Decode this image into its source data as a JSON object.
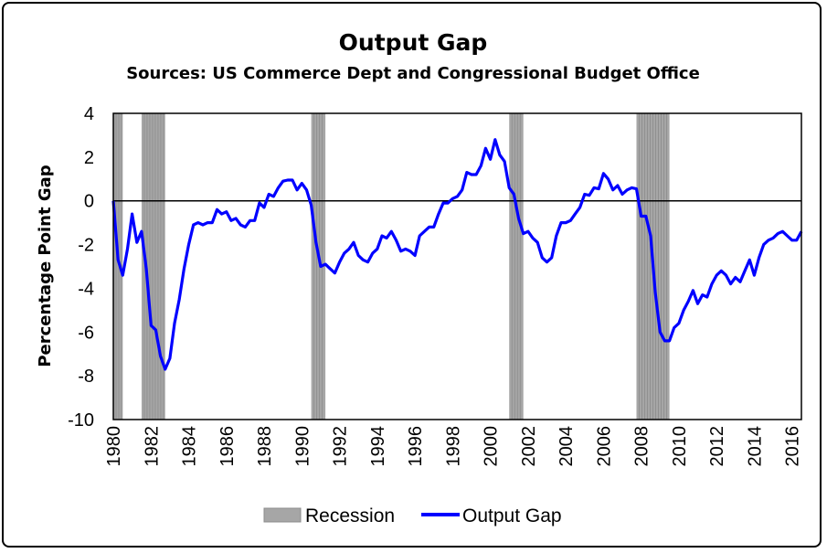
{
  "chart_data": {
    "type": "line",
    "title": "Output Gap",
    "subtitle": "Sources: US Commerce Dept and Congressional Budget Office",
    "xlabel": "",
    "ylabel": "Percentage Point Gap",
    "xlim": [
      1980,
      2016.5
    ],
    "ylim": [
      -10,
      4
    ],
    "yticks": [
      4,
      2,
      0,
      -2,
      -4,
      -6,
      -8,
      -10
    ],
    "yticklabels": [
      "4",
      "2",
      "0",
      "-2",
      "-4",
      "-6",
      "-8",
      "-10"
    ],
    "xticks": [
      1980,
      1982,
      1984,
      1986,
      1988,
      1990,
      1992,
      1994,
      1996,
      1998,
      2000,
      2002,
      2004,
      2006,
      2008,
      2010,
      2012,
      2014,
      2016
    ],
    "xticklabels": [
      "1980",
      "1982",
      "1984",
      "1986",
      "1988",
      "1990",
      "1992",
      "1994",
      "1996",
      "1998",
      "2000",
      "2002",
      "2004",
      "2006",
      "2008",
      "2010",
      "2012",
      "2014",
      "2016"
    ],
    "grid": false,
    "legend_position": "bottom",
    "legend": [
      "Recession",
      "Output Gap"
    ],
    "colors": {
      "line": "#0000ff",
      "recession": "#a6a6a6",
      "zero_line": "#000000"
    },
    "recessions": [
      {
        "start": 1980.0,
        "end": 1980.5
      },
      {
        "start": 1981.5,
        "end": 1982.75
      },
      {
        "start": 1990.5,
        "end": 1991.25
      },
      {
        "start": 2001.0,
        "end": 2001.75
      },
      {
        "start": 2007.75,
        "end": 2009.5
      }
    ],
    "series": [
      {
        "name": "Output Gap",
        "x": [
          1980.0,
          1980.25,
          1980.5,
          1980.75,
          1981.0,
          1981.25,
          1981.5,
          1981.75,
          1982.0,
          1982.25,
          1982.5,
          1982.75,
          1983.0,
          1983.25,
          1983.5,
          1983.75,
          1984.0,
          1984.25,
          1984.5,
          1984.75,
          1985.0,
          1985.25,
          1985.5,
          1985.75,
          1986.0,
          1986.25,
          1986.5,
          1986.75,
          1987.0,
          1987.25,
          1987.5,
          1987.75,
          1988.0,
          1988.25,
          1988.5,
          1988.75,
          1989.0,
          1989.25,
          1989.5,
          1989.75,
          1990.0,
          1990.25,
          1990.5,
          1990.75,
          1991.0,
          1991.25,
          1991.5,
          1991.75,
          1992.0,
          1992.25,
          1992.5,
          1992.75,
          1993.0,
          1993.25,
          1993.5,
          1993.75,
          1994.0,
          1994.25,
          1994.5,
          1994.75,
          1995.0,
          1995.25,
          1995.5,
          1995.75,
          1996.0,
          1996.25,
          1996.5,
          1996.75,
          1997.0,
          1997.25,
          1997.5,
          1997.75,
          1998.0,
          1998.25,
          1998.5,
          1998.75,
          1999.0,
          1999.25,
          1999.5,
          1999.75,
          2000.0,
          2000.25,
          2000.5,
          2000.75,
          2001.0,
          2001.25,
          2001.5,
          2001.75,
          2002.0,
          2002.25,
          2002.5,
          2002.75,
          2003.0,
          2003.25,
          2003.5,
          2003.75,
          2004.0,
          2004.25,
          2004.5,
          2004.75,
          2005.0,
          2005.25,
          2005.5,
          2005.75,
          2006.0,
          2006.25,
          2006.5,
          2006.75,
          2007.0,
          2007.25,
          2007.5,
          2007.75,
          2008.0,
          2008.25,
          2008.5,
          2008.75,
          2009.0,
          2009.25,
          2009.5,
          2009.75,
          2010.0,
          2010.25,
          2010.5,
          2010.75,
          2011.0,
          2011.25,
          2011.5,
          2011.75,
          2012.0,
          2012.25,
          2012.5,
          2012.75,
          2013.0,
          2013.25,
          2013.5,
          2013.75,
          2014.0,
          2014.25,
          2014.5,
          2014.75,
          2015.0,
          2015.25,
          2015.5,
          2015.75,
          2016.0,
          2016.25,
          2016.5
        ],
        "values": [
          0.0,
          -2.7,
          -3.4,
          -2.2,
          -0.6,
          -1.9,
          -1.4,
          -3.1,
          -5.7,
          -5.9,
          -7.1,
          -7.7,
          -7.2,
          -5.6,
          -4.5,
          -3.1,
          -2.0,
          -1.1,
          -1.0,
          -1.1,
          -1.0,
          -1.0,
          -0.4,
          -0.6,
          -0.5,
          -0.9,
          -0.8,
          -1.1,
          -1.2,
          -0.9,
          -0.9,
          -0.1,
          -0.3,
          0.3,
          0.2,
          0.6,
          0.9,
          0.95,
          0.95,
          0.5,
          0.8,
          0.5,
          -0.2,
          -1.9,
          -3.0,
          -2.9,
          -3.1,
          -3.3,
          -2.8,
          -2.4,
          -2.2,
          -1.9,
          -2.5,
          -2.7,
          -2.8,
          -2.4,
          -2.2,
          -1.6,
          -1.7,
          -1.4,
          -1.8,
          -2.3,
          -2.2,
          -2.3,
          -2.5,
          -1.6,
          -1.4,
          -1.2,
          -1.2,
          -0.6,
          -0.1,
          -0.1,
          0.1,
          0.2,
          0.5,
          1.3,
          1.2,
          1.2,
          1.6,
          2.4,
          1.9,
          2.8,
          2.1,
          1.8,
          0.6,
          0.3,
          -0.8,
          -1.5,
          -1.4,
          -1.7,
          -1.9,
          -2.6,
          -2.8,
          -2.6,
          -1.6,
          -1.0,
          -1.0,
          -0.9,
          -0.6,
          -0.3,
          0.3,
          0.25,
          0.6,
          0.55,
          1.25,
          1.0,
          0.5,
          0.7,
          0.3,
          0.5,
          0.6,
          0.55,
          -0.7,
          -0.7,
          -1.6,
          -4.2,
          -6.0,
          -6.4,
          -6.4,
          -5.8,
          -5.6,
          -5.0,
          -4.6,
          -4.1,
          -4.7,
          -4.3,
          -4.4,
          -3.8,
          -3.4,
          -3.2,
          -3.4,
          -3.8,
          -3.5,
          -3.7,
          -3.2,
          -2.7,
          -3.4,
          -2.6,
          -2.0,
          -1.8,
          -1.7,
          -1.5,
          -1.4,
          -1.6,
          -1.8,
          -1.8,
          -1.4
        ]
      }
    ]
  }
}
